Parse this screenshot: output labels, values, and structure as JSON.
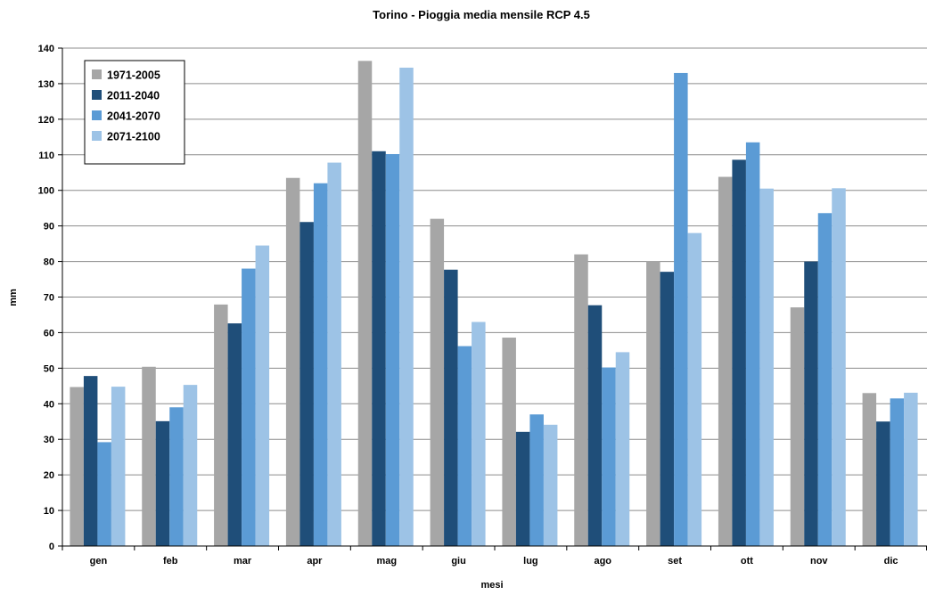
{
  "chart_data": {
    "type": "bar",
    "title": "Torino - Pioggia media mensile RCP 4.5",
    "xlabel": "mesi",
    "ylabel": "mm",
    "ylim": [
      0,
      140
    ],
    "yticks": [
      0,
      10,
      20,
      30,
      40,
      50,
      60,
      70,
      80,
      90,
      100,
      110,
      120,
      130,
      140
    ],
    "grid": true,
    "legend_position": "top-left",
    "categories": [
      "gen",
      "feb",
      "mar",
      "apr",
      "mag",
      "giu",
      "lug",
      "ago",
      "set",
      "ott",
      "nov",
      "dic"
    ],
    "series": [
      {
        "name": "1971-2005",
        "color": "#a6a6a6",
        "values": [
          44.7,
          50.4,
          67.9,
          103.5,
          136.4,
          92,
          58.6,
          82,
          80,
          103.8,
          67.1,
          43
        ]
      },
      {
        "name": "2011-2040",
        "color": "#1f4e79",
        "values": [
          47.8,
          35.1,
          62.6,
          91.1,
          111,
          77.7,
          32.1,
          67.7,
          77.1,
          108.6,
          80,
          35
        ]
      },
      {
        "name": "2041-2070",
        "color": "#5b9bd5",
        "values": [
          29.2,
          39,
          78,
          102,
          110.2,
          56.2,
          37,
          50.2,
          133,
          113.5,
          93.6,
          41.5
        ]
      },
      {
        "name": "2071-2100",
        "color": "#9dc3e6",
        "values": [
          44.8,
          45.3,
          84.5,
          107.8,
          134.5,
          63,
          34.1,
          54.5,
          88,
          100.5,
          100.6,
          43.1
        ]
      }
    ]
  }
}
